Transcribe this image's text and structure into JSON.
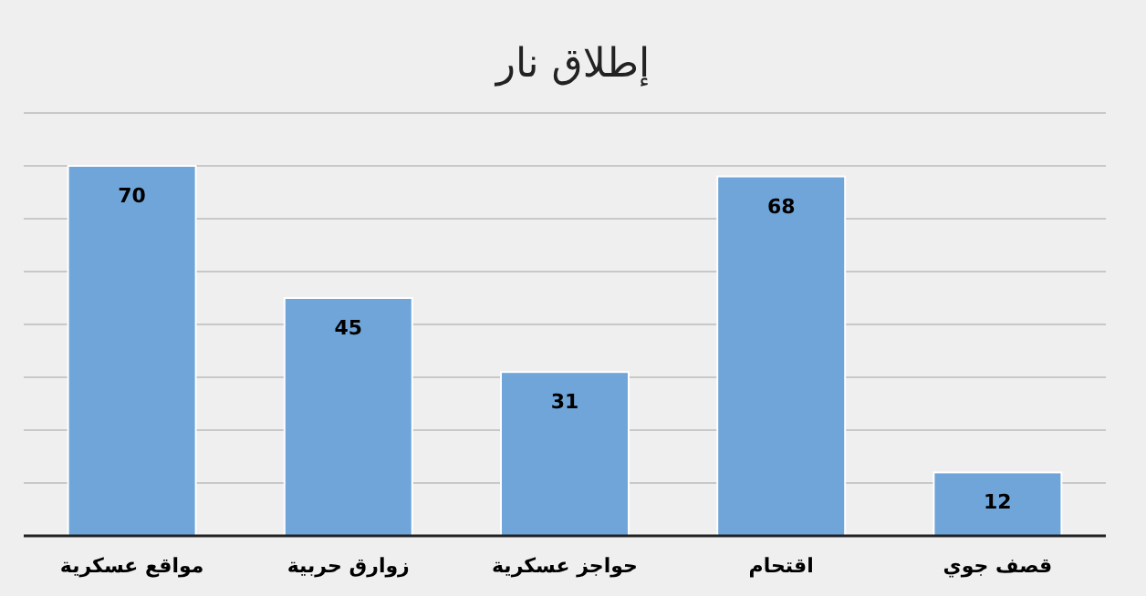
{
  "chart_data": {
    "type": "bar",
    "title": "إطلاق نار",
    "categories": [
      "مواقع عسكرية",
      "زوارق حربية",
      "حواجز عسكرية",
      "اقتحام",
      "قصف جوي"
    ],
    "values": [
      70,
      45,
      31,
      68,
      12
    ],
    "color": "#6fa5d9",
    "grid": "y",
    "data_labels": true
  }
}
